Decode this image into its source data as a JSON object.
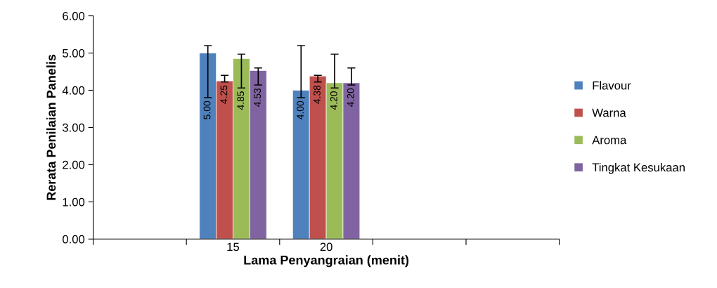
{
  "chart_data": {
    "type": "bar",
    "xlabel": "Lama Penyangraian (menit)",
    "ylabel": "Rerata Penilaian Panelis",
    "categories": [
      null,
      "15",
      "20",
      null,
      null
    ],
    "series": [
      {
        "name": "Flavour",
        "color": "#4f81bd",
        "values": [
          null,
          5.0,
          4.0,
          null,
          null
        ],
        "value_labels": [
          null,
          "5.00",
          "4.00",
          null,
          null
        ],
        "errors": [
          null,
          [
            3.8,
            5.2
          ],
          [
            3.8,
            5.2
          ],
          null,
          null
        ]
      },
      {
        "name": "Warna",
        "color": "#c0504d",
        "values": [
          null,
          4.25,
          4.38,
          null,
          null
        ],
        "value_labels": [
          null,
          "4.25",
          "4.38",
          null,
          null
        ],
        "errors": [
          null,
          [
            4.22,
            4.4
          ],
          [
            4.22,
            4.4
          ],
          null,
          null
        ]
      },
      {
        "name": "Aroma",
        "color": "#9bbb59",
        "values": [
          null,
          4.85,
          4.2,
          null,
          null
        ],
        "value_labels": [
          null,
          "4.85",
          "4.20",
          null,
          null
        ],
        "errors": [
          null,
          [
            4.06,
            4.97
          ],
          [
            4.06,
            4.97
          ],
          null,
          null
        ]
      },
      {
        "name": "Tingkat Kesukaan",
        "color": "#8064a2",
        "values": [
          null,
          4.53,
          4.2,
          null,
          null
        ],
        "value_labels": [
          null,
          "4.53",
          "4.20",
          null,
          null
        ],
        "errors": [
          null,
          [
            4.14,
            4.6
          ],
          [
            4.14,
            4.6
          ],
          null,
          null
        ]
      }
    ],
    "ylim": [
      0,
      6
    ],
    "yticks": [
      {
        "value": 0,
        "label": "0.00"
      },
      {
        "value": 1,
        "label": "1.00"
      },
      {
        "value": 2,
        "label": "2.00"
      },
      {
        "value": 3,
        "label": "3.00"
      },
      {
        "value": 4,
        "label": "4.00"
      },
      {
        "value": 5,
        "label": "5.00"
      },
      {
        "value": 6,
        "label": "6.00"
      }
    ],
    "grid": false,
    "legend": "right"
  }
}
